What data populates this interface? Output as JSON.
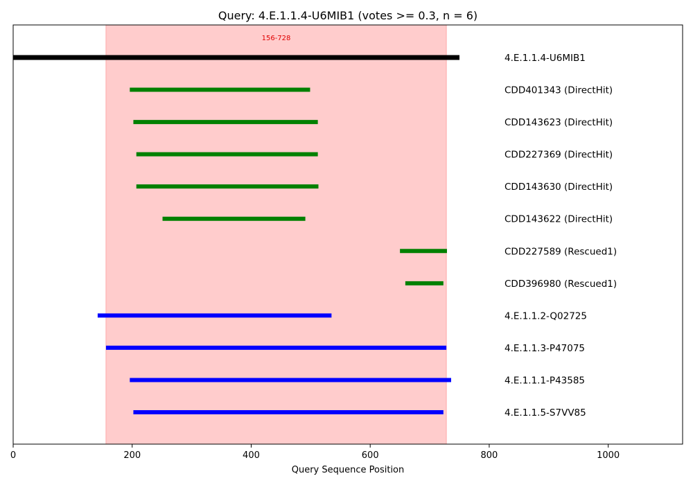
{
  "chart_data": {
    "type": "bar",
    "orientation": "horizontal-intervals",
    "title": "Query: 4.E.1.1.4-U6MIB1 (votes >= 0.3, n = 6)",
    "xlabel": "Query Sequence Position",
    "ylabel": "",
    "xlim": [
      0,
      1125
    ],
    "xticks": [
      0,
      200,
      400,
      600,
      800,
      1000
    ],
    "grid": false,
    "highlight_region": {
      "start": 156,
      "end": 728,
      "label": "156-728",
      "color": "#ffcccc"
    },
    "rows": [
      {
        "label": "4.E.1.1.4-U6MIB1",
        "start": 0,
        "end": 750,
        "color": "#000000"
      },
      {
        "label": "CDD401343 (DirectHit)",
        "start": 196,
        "end": 499,
        "color": "#008000"
      },
      {
        "label": "CDD143623 (DirectHit)",
        "start": 202,
        "end": 512,
        "color": "#008000"
      },
      {
        "label": "CDD227369 (DirectHit)",
        "start": 207,
        "end": 512,
        "color": "#008000"
      },
      {
        "label": "CDD143630 (DirectHit)",
        "start": 207,
        "end": 513,
        "color": "#008000"
      },
      {
        "label": "CDD143622 (DirectHit)",
        "start": 251,
        "end": 491,
        "color": "#008000"
      },
      {
        "label": "CDD227589 (Rescued1)",
        "start": 650,
        "end": 729,
        "color": "#008000"
      },
      {
        "label": "CDD396980 (Rescued1)",
        "start": 659,
        "end": 723,
        "color": "#008000"
      },
      {
        "label": "4.E.1.1.2-Q02725",
        "start": 142,
        "end": 535,
        "color": "#0000ff"
      },
      {
        "label": "4.E.1.1.3-P47075",
        "start": 156,
        "end": 728,
        "color": "#0000ff"
      },
      {
        "label": "4.E.1.1.1-P43585",
        "start": 196,
        "end": 736,
        "color": "#0000ff"
      },
      {
        "label": "4.E.1.1.5-S7VV85",
        "start": 202,
        "end": 723,
        "color": "#0000ff"
      }
    ]
  }
}
